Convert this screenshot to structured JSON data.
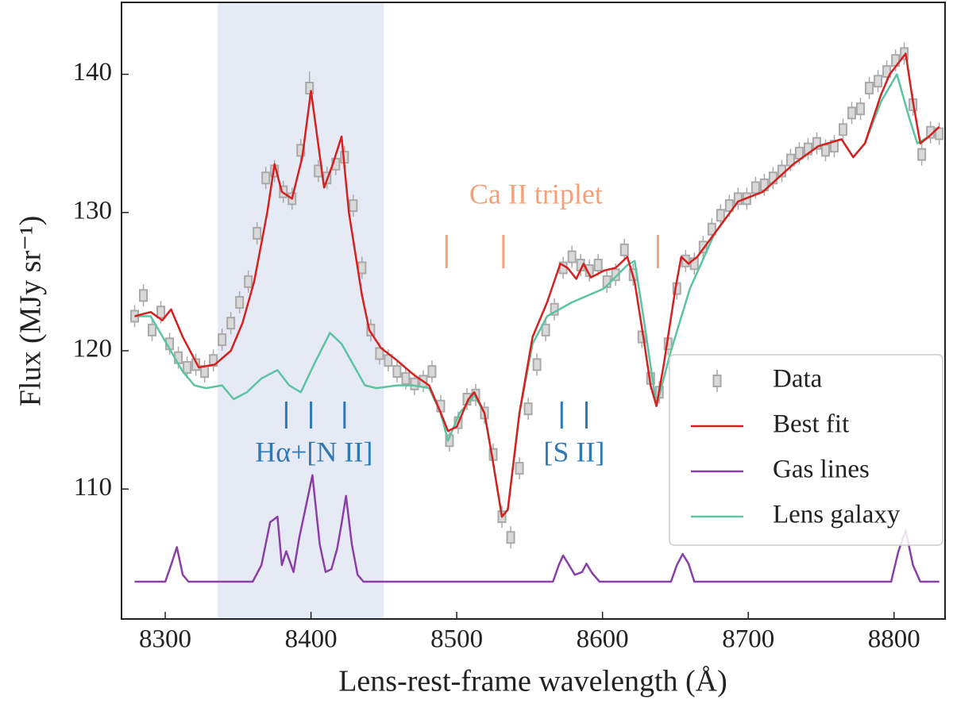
{
  "chart_data": {
    "type": "line",
    "x_label": "Lens-rest-frame wavelength (Å)",
    "y_label": "Flux (MJy sr⁻¹)",
    "xlim": [
      8270,
      8835
    ],
    "ylim": [
      100.6,
      145.2
    ],
    "xticks": [
      8300,
      8400,
      8500,
      8600,
      8700,
      8800
    ],
    "yticks": [
      110,
      120,
      130,
      140
    ],
    "legend": "lower right",
    "shaded_span": {
      "x": [
        8336,
        8450
      ],
      "color": "#e6eaf4"
    },
    "annotations": [
      {
        "text": "Ca II triplet",
        "color": "#f4a07a",
        "x": [
          8493,
          8532,
          8638
        ]
      },
      {
        "text": "Hα+[N II]",
        "color": "#2f78b4",
        "x": [
          8383,
          8400,
          8423
        ]
      },
      {
        "text": "[S II]",
        "color": "#2f78b4",
        "x": [
          8572,
          8589
        ]
      }
    ],
    "series": [
      {
        "name": "Data",
        "color": "#a9a9a9",
        "style": "errorbar",
        "x": [
          8279,
          8285,
          8291,
          8297,
          8303,
          8309,
          8315,
          8321,
          8327,
          8333,
          8339,
          8345,
          8351,
          8357,
          8363,
          8369,
          8375,
          8381,
          8387,
          8393,
          8399,
          8405,
          8411,
          8417,
          8423,
          8429,
          8435,
          8441,
          8447,
          8453,
          8459,
          8465,
          8471,
          8477,
          8483,
          8489,
          8495,
          8501,
          8507,
          8513,
          8519,
          8525,
          8531,
          8537,
          8543,
          8549,
          8555,
          8561,
          8567,
          8573,
          8579,
          8585,
          8591,
          8597,
          8603,
          8609,
          8615,
          8621,
          8627,
          8633,
          8639,
          8645,
          8651,
          8657,
          8663,
          8669,
          8675,
          8681,
          8687,
          8693,
          8699,
          8705,
          8711,
          8717,
          8723,
          8729,
          8735,
          8741,
          8747,
          8753,
          8759,
          8765,
          8771,
          8777,
          8783,
          8789,
          8795,
          8801,
          8807,
          8813,
          8819,
          8825,
          8831
        ],
        "values": [
          122.5,
          124.0,
          121.5,
          122.8,
          120.5,
          119.5,
          118.8,
          119.0,
          118.5,
          119.3,
          120.8,
          122.0,
          123.5,
          125.0,
          128.5,
          132.5,
          133.0,
          131.5,
          131.0,
          134.5,
          139.0,
          133.0,
          132.5,
          133.5,
          134.0,
          130.5,
          126.0,
          121.5,
          119.8,
          119.3,
          118.5,
          118.0,
          117.6,
          117.8,
          118.5,
          116.0,
          113.5,
          114.8,
          116.5,
          116.8,
          115.5,
          112.5,
          108.0,
          106.5,
          111.5,
          115.8,
          119.0,
          121.5,
          123.0,
          126.0,
          126.8,
          126.2,
          125.8,
          126.2,
          125.0,
          125.5,
          127.3,
          125.5,
          121.0,
          118.0,
          117.0,
          120.5,
          124.5,
          126.5,
          126.3,
          127.5,
          128.8,
          129.8,
          130.5,
          131.0,
          131.0,
          131.8,
          132.0,
          132.5,
          133.0,
          133.8,
          134.3,
          134.6,
          135.0,
          134.5,
          134.8,
          136.0,
          137.2,
          137.5,
          139.0,
          139.5,
          140.2,
          141.0,
          141.5,
          137.8,
          134.2,
          135.8,
          135.7
        ],
        "errors": [
          0.8,
          0.8,
          0.8,
          0.8,
          0.8,
          0.8,
          0.8,
          0.8,
          0.8,
          0.8,
          0.8,
          0.8,
          0.8,
          0.8,
          0.8,
          0.8,
          0.8,
          0.8,
          0.8,
          0.8,
          1.2,
          0.8,
          0.8,
          0.8,
          0.8,
          0.8,
          0.8,
          0.8,
          0.8,
          0.8,
          0.8,
          0.8,
          0.8,
          0.8,
          0.8,
          0.8,
          0.8,
          0.8,
          0.8,
          0.8,
          0.8,
          0.8,
          0.8,
          0.8,
          0.8,
          0.8,
          0.8,
          0.8,
          0.8,
          0.8,
          0.8,
          0.8,
          0.8,
          0.8,
          0.8,
          0.8,
          0.8,
          0.8,
          0.8,
          0.8,
          0.8,
          0.8,
          0.8,
          0.8,
          0.8,
          0.8,
          0.8,
          0.8,
          0.8,
          0.8,
          0.8,
          0.8,
          0.8,
          0.8,
          0.8,
          0.8,
          0.8,
          0.8,
          0.8,
          0.8,
          0.8,
          0.8,
          0.8,
          0.8,
          0.8,
          0.8,
          0.8,
          0.8,
          0.8,
          0.8,
          0.8,
          0.8,
          0.8
        ]
      },
      {
        "name": "Best fit",
        "color": "#d62020",
        "style": "line",
        "x": [
          8279,
          8290,
          8298,
          8304,
          8312,
          8323,
          8334,
          8345,
          8353,
          8361,
          8370,
          8375,
          8380,
          8387,
          8394,
          8400,
          8409,
          8415,
          8421,
          8426,
          8435,
          8440,
          8448,
          8459,
          8470,
          8481,
          8489,
          8494,
          8500,
          8508,
          8512,
          8519,
          8524,
          8531,
          8535,
          8543,
          8552,
          8562,
          8571,
          8576,
          8582,
          8587,
          8592,
          8601,
          8609,
          8617,
          8622,
          8628,
          8633,
          8637,
          8642,
          8650,
          8654,
          8659,
          8665,
          8677,
          8693,
          8710,
          8731,
          8748,
          8764,
          8772,
          8780,
          8791,
          8797,
          8808,
          8813,
          8818,
          8824,
          8831
        ],
        "values": [
          122.5,
          122.8,
          122.2,
          123.0,
          121.0,
          118.8,
          119.0,
          120.0,
          122.0,
          125.0,
          130.0,
          133.5,
          131.5,
          131.0,
          134.0,
          138.8,
          131.8,
          133.5,
          135.5,
          130.0,
          124.0,
          121.5,
          120.2,
          119.3,
          118.3,
          117.5,
          115.5,
          114.2,
          114.5,
          116.5,
          117.0,
          115.5,
          112.5,
          108.0,
          108.5,
          115.5,
          121.0,
          123.5,
          126.3,
          126.0,
          125.2,
          126.3,
          125.3,
          125.8,
          126.0,
          126.8,
          125.0,
          121.0,
          117.5,
          116.0,
          119.0,
          124.5,
          126.8,
          126.3,
          126.8,
          128.5,
          130.8,
          131.5,
          133.5,
          134.8,
          135.3,
          134.0,
          135.0,
          138.5,
          140.0,
          141.5,
          138.0,
          135.0,
          135.5,
          136.2
        ]
      },
      {
        "name": "Gas lines",
        "color": "#8a3fa6",
        "style": "line",
        "x": [
          8279,
          8300,
          8304,
          8308,
          8312,
          8316,
          8360,
          8366,
          8372,
          8377,
          8380,
          8383,
          8388,
          8392,
          8396,
          8401,
          8406,
          8410,
          8414,
          8418,
          8421,
          8424,
          8428,
          8432,
          8436,
          8566,
          8570,
          8573,
          8577,
          8581,
          8586,
          8589,
          8593,
          8598,
          8647,
          8651,
          8655,
          8659,
          8663,
          8798,
          8803,
          8808,
          8813,
          8818,
          8831
        ],
        "values": [
          103.3,
          103.3,
          104.5,
          105.8,
          103.8,
          103.3,
          103.3,
          104.5,
          107.6,
          108.0,
          104.5,
          105.5,
          104.0,
          106.5,
          108.5,
          111.0,
          106.0,
          104.0,
          104.2,
          105.7,
          107.5,
          109.5,
          106.0,
          103.8,
          103.3,
          103.3,
          104.5,
          105.2,
          104.5,
          103.8,
          104.0,
          104.6,
          103.9,
          103.3,
          103.3,
          104.5,
          105.3,
          104.6,
          103.3,
          103.3,
          105.5,
          107.0,
          104.5,
          103.3,
          103.3
        ]
      },
      {
        "name": "Lens galaxy",
        "color": "#5cc4a2",
        "style": "line",
        "x": [
          8279,
          8290,
          8301,
          8312,
          8320,
          8328,
          8339,
          8347,
          8356,
          8366,
          8377,
          8385,
          8393,
          8402,
          8413,
          8421,
          8429,
          8437,
          8445,
          8459,
          8470,
          8481,
          8489,
          8494,
          8502,
          8512,
          8519,
          8524,
          8531,
          8535,
          8543,
          8552,
          8562,
          8579,
          8601,
          8617,
          8622,
          8628,
          8637,
          8647,
          8660,
          8677,
          8693,
          8710,
          8731,
          8748,
          8764,
          8772,
          8780,
          8791,
          8802,
          8810,
          8816,
          8824,
          8831
        ],
        "values": [
          122.5,
          122.5,
          120.5,
          118.5,
          117.5,
          117.3,
          117.5,
          116.5,
          117.0,
          118.0,
          118.6,
          117.5,
          117.0,
          119.0,
          121.3,
          120.5,
          119.0,
          117.5,
          117.3,
          117.5,
          117.5,
          117.3,
          115.5,
          113.5,
          115.5,
          116.8,
          115.5,
          112.5,
          108.0,
          108.5,
          115.5,
          120.5,
          122.5,
          123.5,
          124.5,
          126.2,
          126.5,
          122.5,
          116.0,
          120.0,
          124.5,
          128.5,
          130.8,
          131.5,
          133.5,
          134.8,
          135.3,
          134.0,
          135.0,
          138.0,
          140.0,
          137.0,
          135.0,
          135.5,
          136.2
        ]
      }
    ]
  }
}
